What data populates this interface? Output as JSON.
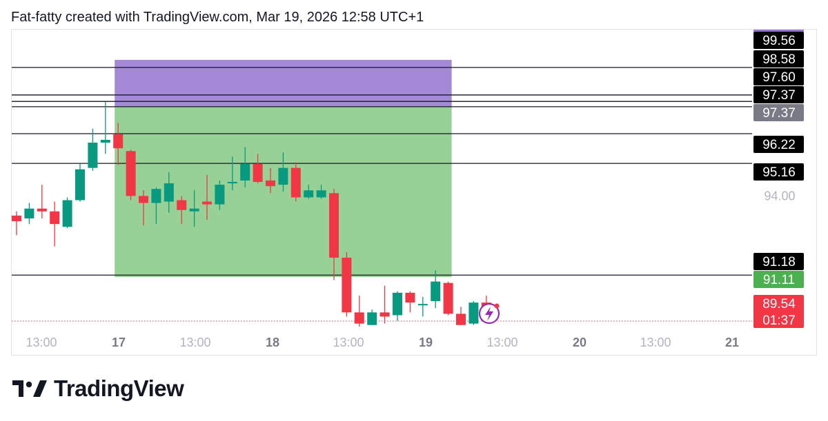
{
  "header": {
    "text": "Fat-fatty created with TradingView.com, Mar 19, 2026 12:58 UTC+1"
  },
  "brand": {
    "name": "TradingView"
  },
  "chart_data": {
    "type": "candlestick",
    "ylim": [
      89.3,
      99.8
    ],
    "x_tick_labels": [
      "13:00",
      "17",
      "13:00",
      "18",
      "13:00",
      "19",
      "13:00",
      "20",
      "13:00",
      "21"
    ],
    "x_tick_bold": [
      false,
      true,
      false,
      true,
      false,
      true,
      false,
      true,
      false,
      true
    ],
    "y_tick_labels": [
      {
        "value": 94.0,
        "label": "94.00"
      }
    ],
    "horizontal_lines": [
      98.58,
      97.6,
      97.37,
      97.18,
      96.22,
      95.16,
      91.18
    ],
    "price_labels": [
      {
        "value": 99.56,
        "label": "99.56",
        "style": "dark"
      },
      {
        "value": 98.58,
        "label": "98.58",
        "style": "dark"
      },
      {
        "value": 97.6,
        "label": "97.60",
        "style": "dark"
      },
      {
        "value": 97.37,
        "label": "97.37",
        "style": "dark"
      },
      {
        "value": 97.37,
        "label": "97.37",
        "style": "gray"
      },
      {
        "value": 96.22,
        "label": "96.22",
        "style": "dark"
      },
      {
        "value": 95.16,
        "label": "95.16",
        "style": "dark"
      },
      {
        "value": 91.18,
        "label": "91.18",
        "style": "dark"
      },
      {
        "value": 91.11,
        "label": "91.11",
        "style": "green"
      },
      {
        "value": 89.54,
        "label": "89.54",
        "style": "red",
        "sublabel": "01:37"
      }
    ],
    "position_tool": {
      "start_index": 8,
      "end_index": 34,
      "entry": 97.18,
      "target": 98.85,
      "stop": 91.11,
      "target_color": "#a48ad6",
      "stop_color": "#98d195"
    },
    "current_price": 89.54,
    "candles": [
      [
        93.3,
        93.45,
        92.6,
        93.1
      ],
      [
        93.2,
        93.75,
        93.0,
        93.55
      ],
      [
        93.55,
        94.4,
        93.2,
        93.45
      ],
      [
        93.45,
        93.8,
        92.2,
        93.0
      ],
      [
        92.9,
        93.95,
        92.85,
        93.85
      ],
      [
        93.85,
        95.15,
        93.8,
        94.95
      ],
      [
        95.0,
        96.4,
        94.9,
        95.9
      ],
      [
        95.9,
        97.35,
        95.5,
        96.0
      ],
      [
        96.2,
        96.6,
        95.1,
        95.7
      ],
      [
        95.6,
        95.65,
        93.85,
        94.0
      ],
      [
        94.0,
        94.2,
        92.95,
        93.75
      ],
      [
        93.75,
        94.3,
        93.0,
        94.25
      ],
      [
        93.8,
        94.85,
        93.4,
        94.45
      ],
      [
        93.85,
        94.0,
        93.0,
        93.5
      ],
      [
        93.45,
        94.2,
        92.9,
        93.55
      ],
      [
        93.8,
        94.75,
        93.15,
        93.7
      ],
      [
        93.7,
        94.55,
        93.5,
        94.4
      ],
      [
        94.45,
        95.4,
        94.2,
        94.5
      ],
      [
        94.55,
        95.75,
        94.3,
        95.15
      ],
      [
        95.15,
        95.5,
        94.45,
        94.5
      ],
      [
        94.55,
        95.0,
        94.1,
        94.35
      ],
      [
        94.4,
        95.55,
        94.15,
        95.0
      ],
      [
        95.0,
        95.2,
        93.8,
        93.95
      ],
      [
        93.95,
        94.4,
        93.9,
        94.2
      ],
      [
        93.95,
        94.4,
        93.9,
        94.2
      ],
      [
        94.1,
        94.25,
        91.0,
        91.8
      ],
      [
        91.8,
        92.0,
        89.7,
        89.85
      ],
      [
        89.85,
        90.45,
        89.3,
        89.45
      ],
      [
        89.4,
        89.95,
        89.4,
        89.85
      ],
      [
        89.85,
        90.8,
        89.45,
        89.7
      ],
      [
        89.75,
        90.6,
        89.55,
        90.55
      ],
      [
        90.55,
        90.6,
        89.85,
        90.2
      ],
      [
        90.1,
        90.4,
        89.7,
        90.15
      ],
      [
        90.25,
        91.35,
        90.0,
        90.95
      ],
      [
        90.9,
        90.95,
        89.75,
        89.8
      ],
      [
        89.8,
        90.05,
        89.4,
        89.4
      ],
      [
        89.45,
        90.25,
        89.4,
        90.2
      ],
      [
        90.2,
        90.45,
        89.54,
        89.54
      ]
    ]
  }
}
